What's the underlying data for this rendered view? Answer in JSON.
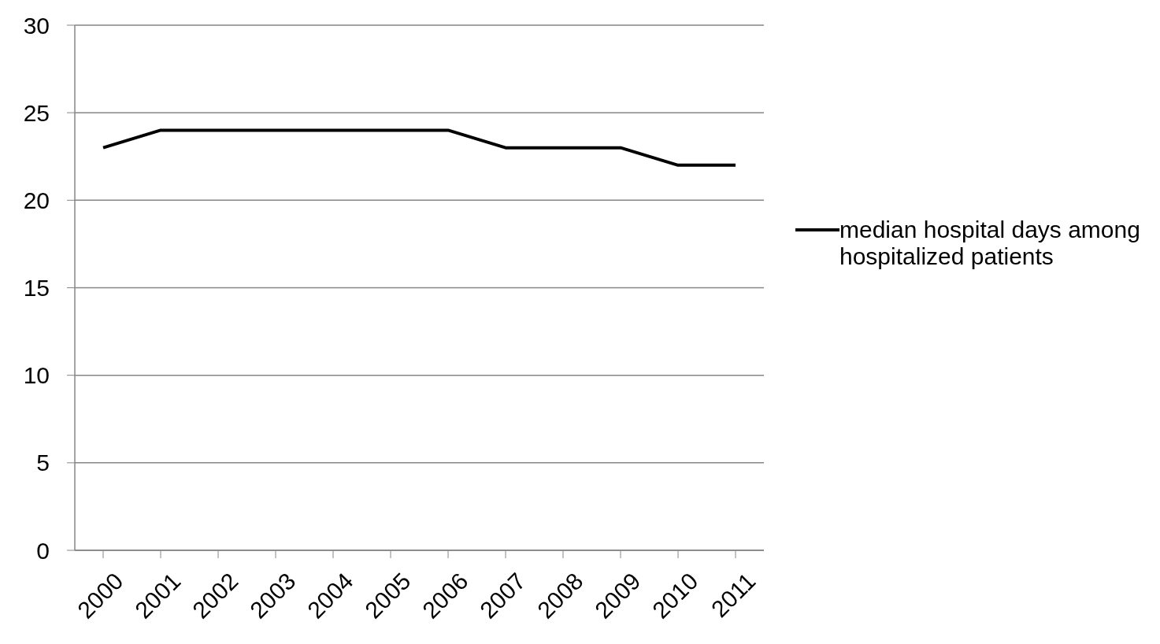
{
  "chart_data": {
    "type": "line",
    "categories": [
      "2000",
      "2001",
      "2002",
      "2003",
      "2004",
      "2005",
      "2006",
      "2007",
      "2008",
      "2009",
      "2010",
      "2011"
    ],
    "series": [
      {
        "name": "median hospital days among hospitalized patients",
        "color": "#000000",
        "values": [
          23,
          24,
          24,
          24,
          24,
          24,
          24,
          23,
          23,
          23,
          22,
          22
        ]
      }
    ],
    "ylim": [
      0,
      30
    ],
    "yticks": [
      0,
      5,
      10,
      15,
      20,
      25,
      30
    ],
    "grid": "y",
    "legend": "right",
    "marker": "none",
    "line_style": "solid"
  }
}
